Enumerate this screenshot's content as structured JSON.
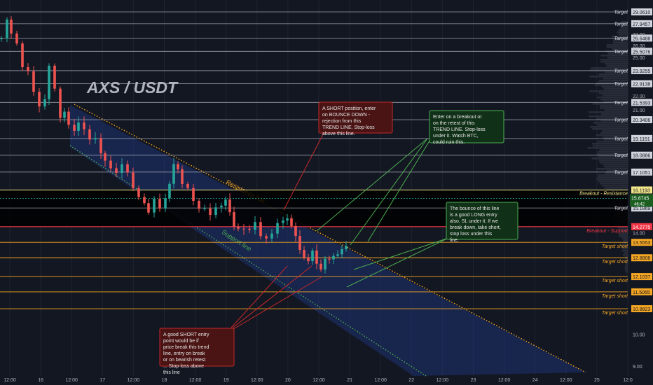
{
  "title": "AXS / USDT",
  "colors": {
    "background": "#131722",
    "grid": "#2a2e39",
    "bull": "#26a69a",
    "bear": "#ef5350",
    "target_line": "#c9ccd6",
    "short_line": "#f5a623",
    "breakout_line": "#f2e68a",
    "support_line": "#f23645",
    "current_price": "#1b5e20",
    "channel_fill": "#1e3a8a",
    "resistance_dots": "#f5a623",
    "support_dots": "#4caf50"
  },
  "chart_data": {
    "type": "candlestick",
    "title": "AXS / USDT",
    "y_axis": {
      "scale": "log",
      "ylim": [
        8.75,
        30.5
      ]
    },
    "x_ticks": [
      "12:00",
      "16",
      "12:00",
      "17",
      "12:00",
      "18",
      "12:00",
      "19",
      "12:00",
      "20",
      "12:00",
      "21",
      "12:00",
      "22",
      "12:00",
      "23",
      "12:00",
      "24",
      "12:00",
      "25",
      "12:0"
    ],
    "price_ticks": [
      27.0,
      26.0,
      25.0,
      22.0,
      21.0,
      14.0,
      10.0,
      9.0
    ],
    "target_levels": [
      {
        "label": "Target",
        "value": "29.0610"
      },
      {
        "label": "Target",
        "value": "27.9457"
      },
      {
        "label": "Target",
        "value": "26.6488"
      },
      {
        "label": "Target",
        "value": "25.5076"
      },
      {
        "label": "Target",
        "value": "23.9255"
      },
      {
        "label": "Target",
        "value": "22.9138"
      },
      {
        "label": "Target",
        "value": "21.5393"
      },
      {
        "label": "Target",
        "value": "20.3406"
      },
      {
        "label": "Target",
        "value": "19.1151"
      },
      {
        "label": "Target",
        "value": "18.0886"
      },
      {
        "label": "Target",
        "value": "17.1051"
      },
      {
        "label": "Target",
        "value": "15.1869"
      }
    ],
    "short_levels": [
      {
        "label": "Target short",
        "value": "13.5553"
      },
      {
        "label": "Target short",
        "value": "12.8806"
      },
      {
        "label": "Target short",
        "value": "12.1037"
      },
      {
        "label": "Target short",
        "value": "11.5065"
      },
      {
        "label": "Target short",
        "value": "10.8823"
      }
    ],
    "breakout_resistance": {
      "label": "Breakout - Resistance",
      "value": "16.1193"
    },
    "breakout_support": {
      "label": "Breakout - Support",
      "value": "14.2775"
    },
    "current_price": {
      "value": "15.6745",
      "countdown": "46:42"
    },
    "trend_lines": [
      {
        "name": "Resistance line"
      },
      {
        "name": "Support line"
      }
    ]
  },
  "annotations": [
    {
      "text": "A SHORT position, enter on BOUNCE DOWN - rejection from this TREND LINE. Stop-loss above this line.",
      "style": "red"
    },
    {
      "text": "Enter on a breakout or on the retest of this TREND LINE. Stop-loss under it. Watch BTC, could ruin this.",
      "style": "green"
    },
    {
      "text": "The bounce of this line is a good LONG entry also. SL under it. If we break down, take short, stop loss under this line.",
      "style": "green"
    },
    {
      "text": "A good SHORT entry point would be if price break this trend line, entry on break or on bearish retest ... Stop-loss above this line",
      "style": "red"
    }
  ]
}
